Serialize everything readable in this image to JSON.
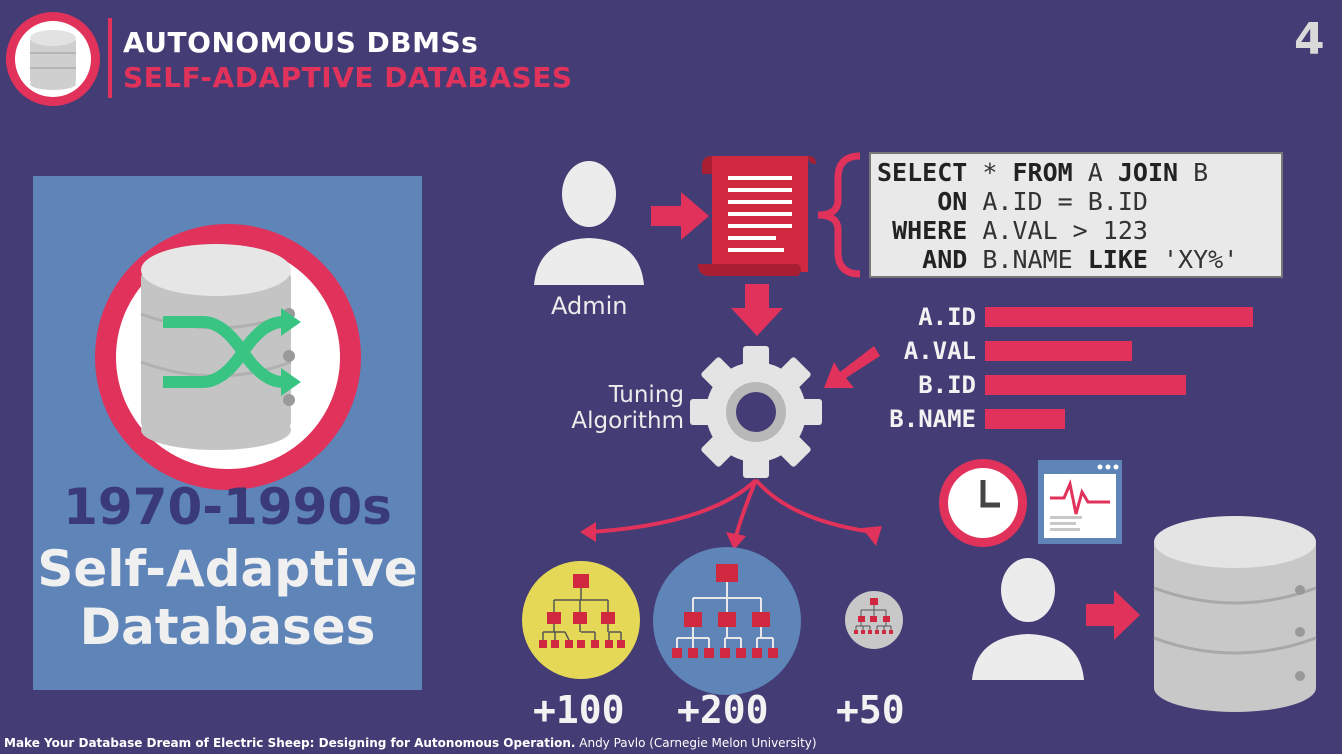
{
  "header": {
    "title": "AUTONOMOUS DBMSs",
    "subtitle": "SELF-ADAPTIVE DATABASES",
    "slide_number": "4"
  },
  "panel": {
    "era": "1970-1990s",
    "line1": "Self-Adaptive",
    "line2": "Databases"
  },
  "diagram": {
    "admin_label": "Admin",
    "tuning_line1": "Tuning",
    "tuning_line2": "Algorithm",
    "sql": {
      "l1_kw1": "SELECT",
      "l1_rest": " * ",
      "l1_kw2": "FROM",
      "l1_rest2": " A ",
      "l1_kw3": "JOIN",
      "l1_rest3": " B",
      "l2_kw": "ON",
      "l2_rest": " A.ID = B.ID",
      "l3_kw": "WHERE",
      "l3_rest": " A.VAL > 123",
      "l4_kw": "AND",
      "l4_rest1": " B.NAME ",
      "l4_kw2": "LIKE",
      "l4_rest2": " 'XY%'"
    },
    "columns": [
      {
        "label": "A.ID",
        "value": 1.0
      },
      {
        "label": "A.VAL",
        "value": 0.55
      },
      {
        "label": "B.ID",
        "value": 0.75
      },
      {
        "label": "B.NAME",
        "value": 0.3
      }
    ],
    "counts": [
      "+100",
      "+200",
      "+50"
    ]
  },
  "footer": {
    "talk_title": "Make Your Database Dream of Electric Sheep: Designing for Autonomous Operation.",
    "author": " Andy Pavlo (Carnegie Melon University)"
  },
  "colors": {
    "background": "#443c74",
    "accent": "#e0325a",
    "panel": "#5e84b8"
  }
}
